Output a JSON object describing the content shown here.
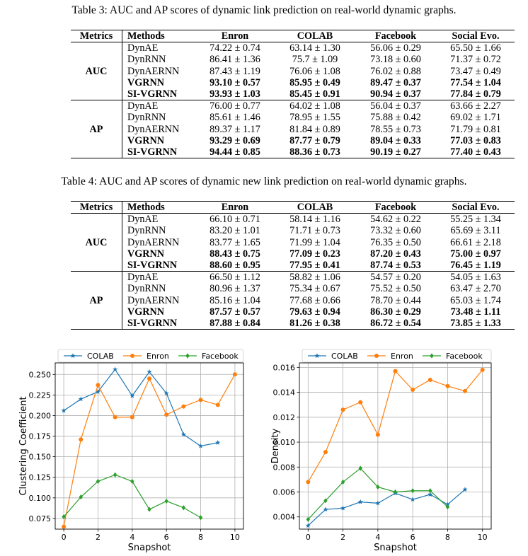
{
  "table3": {
    "caption": "Table 3: AUC and AP scores of dynamic link prediction on real-world dynamic graphs.",
    "headers": [
      "Metrics",
      "Methods",
      "Enron",
      "COLAB",
      "Facebook",
      "Social Evo."
    ],
    "groups": [
      {
        "metric": "AUC",
        "rows": [
          {
            "method": "DynAE",
            "values": [
              "74.22 ± 0.74",
              "63.14 ± 1.30",
              "56.06 ± 0.29",
              "65.50 ± 1.66"
            ],
            "bold": false
          },
          {
            "method": "DynRNN",
            "values": [
              "86.41 ± 1.36",
              "75.7 ± 1.09",
              "73.18 ± 0.60",
              "71.37 ± 0.72"
            ],
            "bold": false
          },
          {
            "method": "DynAERNN",
            "values": [
              "87.43 ± 1.19",
              "76.06 ± 1.08",
              "76.02 ± 0.88",
              "73.47 ± 0.49"
            ],
            "bold": false
          },
          {
            "method": "VGRNN",
            "values": [
              "93.10 ± 0.57",
              "85.95 ± 0.49",
              "89.47 ± 0.37",
              "77.54 ± 1.04"
            ],
            "bold": true
          },
          {
            "method": "SI-VGRNN",
            "values": [
              "93.93 ± 1.03",
              "85.45 ± 0.91",
              "90.94 ± 0.37",
              "77.84 ± 0.79"
            ],
            "bold": true
          }
        ]
      },
      {
        "metric": "AP",
        "rows": [
          {
            "method": "DynAE",
            "values": [
              "76.00 ± 0.77",
              "64.02 ± 1.08",
              "56.04 ± 0.37",
              "63.66 ± 2.27"
            ],
            "bold": false
          },
          {
            "method": "DynRNN",
            "values": [
              "85.61 ± 1.46",
              "78.95 ± 1.55",
              "75.88 ± 0.42",
              "69.02 ± 1.71"
            ],
            "bold": false
          },
          {
            "method": "DynAERNN",
            "values": [
              "89.37 ± 1.17",
              "81.84 ± 0.89",
              "78.55 ± 0.73",
              "71.79 ± 0.81"
            ],
            "bold": false
          },
          {
            "method": "VGRNN",
            "values": [
              "93.29 ± 0.69",
              "87.77 ± 0.79",
              "89.04 ± 0.33",
              "77.03 ± 0.83"
            ],
            "bold": true
          },
          {
            "method": "SI-VGRNN",
            "values": [
              "94.44 ± 0.85",
              "88.36 ± 0.73",
              "90.19 ± 0.27",
              "77.40 ± 0.43"
            ],
            "bold": true
          }
        ]
      }
    ]
  },
  "table4": {
    "caption": "Table 4: AUC and AP scores of dynamic new link prediction on real-world dynamic graphs.",
    "headers": [
      "Metrics",
      "Methods",
      "Enron",
      "COLAB",
      "Facebook",
      "Social Evo."
    ],
    "groups": [
      {
        "metric": "AUC",
        "rows": [
          {
            "method": "DynAE",
            "values": [
              "66.10 ± 0.71",
              "58.14 ± 1.16",
              "54.62 ± 0.22",
              "55.25 ± 1.34"
            ],
            "bold": false
          },
          {
            "method": "DynRNN",
            "values": [
              "83.20 ± 1.01",
              "71.71 ± 0.73",
              "73.32 ± 0.60",
              "65.69 ± 3.11"
            ],
            "bold": false
          },
          {
            "method": "DynAERNN",
            "values": [
              "83.77 ± 1.65",
              "71.99 ± 1.04",
              "76.35 ± 0.50",
              "66.61 ± 2.18"
            ],
            "bold": false
          },
          {
            "method": "VGRNN",
            "values": [
              "88.43 ± 0.75",
              "77.09 ± 0.23",
              "87.20 ± 0.43",
              "75.00 ± 0.97"
            ],
            "bold": true
          },
          {
            "method": "SI-VGRNN",
            "values": [
              "88.60 ± 0.95",
              "77.95 ± 0.41",
              "87.74 ± 0.53",
              "76.45 ± 1.19"
            ],
            "bold": true
          }
        ]
      },
      {
        "metric": "AP",
        "rows": [
          {
            "method": "DynAE",
            "values": [
              "66.50 ± 1.12",
              "58.82 ± 1.06",
              "54.57 ± 0.20",
              "54.05 ± 1.63"
            ],
            "bold": false
          },
          {
            "method": "DynRNN",
            "values": [
              "80.96 ± 1.37",
              "75.34 ± 0.67",
              "75.52 ± 0.50",
              "63.47 ± 2.70"
            ],
            "bold": false
          },
          {
            "method": "DynAERNN",
            "values": [
              "85.16 ± 1.04",
              "77.68 ± 0.66",
              "78.70 ± 0.44",
              "65.03 ± 1.74"
            ],
            "bold": false
          },
          {
            "method": "VGRNN",
            "values": [
              "87.57 ± 0.57",
              "79.63 ± 0.94",
              "86.30 ± 0.29",
              "73.48 ± 1.11"
            ],
            "bold": true
          },
          {
            "method": "SI-VGRNN",
            "values": [
              "87.88 ± 0.84",
              "81.26 ± 0.38",
              "86.72 ± 0.54",
              "73.85 ± 1.33"
            ],
            "bold": true
          }
        ]
      }
    ]
  },
  "chart_data": [
    {
      "type": "line",
      "title": "",
      "xlabel": "Snapshot",
      "ylabel": "Clustering Coefficient",
      "xlim": [
        -0.5,
        10.5
      ],
      "ylim": [
        0.062,
        0.264
      ],
      "xticks": [
        0,
        2,
        4,
        6,
        8,
        10
      ],
      "yticks": [
        0.075,
        0.1,
        0.125,
        0.15,
        0.175,
        0.2,
        0.225,
        0.25
      ],
      "ytick_labels": [
        "0.075",
        "0.100",
        "0.125",
        "0.150",
        "0.175",
        "0.200",
        "0.225",
        "0.250"
      ],
      "grid": true,
      "legend": "top",
      "series": [
        {
          "name": "COLAB",
          "color": "#1f77b4",
          "marker": "star",
          "x": [
            0,
            1,
            2,
            3,
            4,
            5,
            6,
            7,
            8,
            9
          ],
          "values": [
            0.206,
            0.22,
            0.229,
            0.256,
            0.224,
            0.253,
            0.227,
            0.177,
            0.163,
            0.167
          ]
        },
        {
          "name": "Enron",
          "color": "#ff7f0e",
          "marker": "circle",
          "x": [
            0,
            1,
            2,
            3,
            4,
            5,
            6,
            7,
            8,
            9,
            10
          ],
          "values": [
            0.065,
            0.171,
            0.237,
            0.198,
            0.198,
            0.245,
            0.201,
            0.211,
            0.219,
            0.213,
            0.25
          ]
        },
        {
          "name": "Facebook",
          "color": "#2ca02c",
          "marker": "diamond",
          "x": [
            0,
            1,
            2,
            3,
            4,
            5,
            6,
            7,
            8
          ],
          "values": [
            0.077,
            0.101,
            0.12,
            0.128,
            0.12,
            0.086,
            0.096,
            0.088,
            0.076
          ]
        }
      ]
    },
    {
      "type": "line",
      "title": "",
      "xlabel": "Snapshot",
      "ylabel": "Density",
      "xlim": [
        -0.5,
        10.5
      ],
      "ylim": [
        0.00302,
        0.01636
      ],
      "xticks": [
        0,
        2,
        4,
        6,
        8,
        10
      ],
      "yticks": [
        0.004,
        0.006,
        0.008,
        0.01,
        0.012,
        0.014,
        0.016
      ],
      "ytick_labels": [
        "0.004",
        "0.006",
        "0.008",
        "0.010",
        "0.012",
        "0.014",
        "0.016"
      ],
      "grid": true,
      "legend": "top",
      "series": [
        {
          "name": "COLAB",
          "color": "#1f77b4",
          "marker": "star",
          "x": [
            0,
            1,
            2,
            3,
            4,
            5,
            6,
            7,
            8,
            9
          ],
          "values": [
            0.0033,
            0.0046,
            0.0047,
            0.0052,
            0.0051,
            0.0059,
            0.0054,
            0.0058,
            0.005,
            0.0062
          ]
        },
        {
          "name": "Enron",
          "color": "#ff7f0e",
          "marker": "circle",
          "x": [
            0,
            1,
            2,
            3,
            4,
            5,
            6,
            7,
            8,
            9,
            10
          ],
          "values": [
            0.0068,
            0.0092,
            0.0126,
            0.0132,
            0.0106,
            0.0157,
            0.0142,
            0.015,
            0.0145,
            0.0141,
            0.0158
          ]
        },
        {
          "name": "Facebook",
          "color": "#2ca02c",
          "marker": "diamond",
          "x": [
            0,
            1,
            2,
            3,
            4,
            5,
            6,
            7,
            8
          ],
          "values": [
            0.0038,
            0.0053,
            0.0068,
            0.0079,
            0.0064,
            0.006,
            0.0061,
            0.0061,
            0.0048
          ]
        }
      ]
    }
  ]
}
